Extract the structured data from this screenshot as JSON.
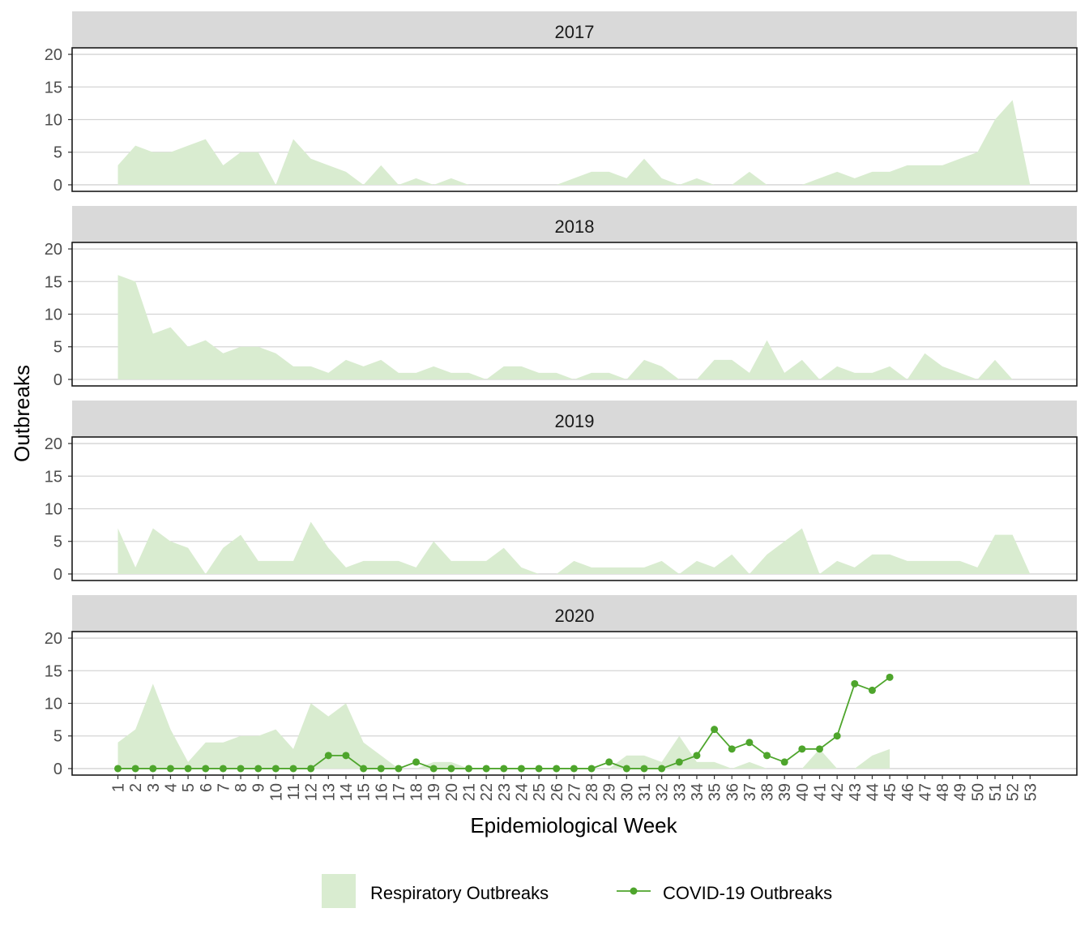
{
  "chart_data": {
    "type": "area",
    "ylabel": "Outbreaks",
    "xlabel": "Epidemiological Week",
    "ylim": [
      0,
      20
    ],
    "y_ticks": [
      "0",
      "5",
      "10",
      "15",
      "20"
    ],
    "x_ticks": [
      "1",
      "2",
      "3",
      "4",
      "5",
      "6",
      "7",
      "8",
      "9",
      "10",
      "11",
      "12",
      "13",
      "14",
      "15",
      "16",
      "17",
      "18",
      "19",
      "20",
      "21",
      "22",
      "23",
      "24",
      "25",
      "26",
      "27",
      "28",
      "29",
      "30",
      "31",
      "32",
      "33",
      "34",
      "35",
      "36",
      "37",
      "38",
      "39",
      "40",
      "41",
      "42",
      "43",
      "44",
      "45",
      "46",
      "47",
      "48",
      "49",
      "50",
      "51",
      "52",
      "53"
    ],
    "grid": true,
    "legend_position": "bottom",
    "colors": {
      "respiratory": "#d9ecd0",
      "covid": "#4ea52c",
      "strip": "#d9d9d9",
      "grid": "#d4d4d4"
    },
    "legend": [
      {
        "key": "respiratory",
        "label": "Respiratory Outbreaks"
      },
      {
        "key": "covid",
        "label": "COVID-19 Outbreaks"
      }
    ],
    "panels": [
      {
        "label": "2017",
        "respiratory": [
          3,
          6,
          5,
          5,
          6,
          7,
          3,
          5,
          5,
          0,
          7,
          4,
          3,
          2,
          0,
          3,
          0,
          1,
          0,
          1,
          0,
          0,
          0,
          0,
          0,
          0,
          1,
          2,
          2,
          1,
          4,
          1,
          0,
          1,
          0,
          0,
          2,
          0,
          0,
          0,
          1,
          2,
          1,
          2,
          2,
          3,
          3,
          3,
          4,
          5,
          10,
          13,
          0
        ],
        "covid": []
      },
      {
        "label": "2018",
        "respiratory": [
          16,
          15,
          7,
          8,
          5,
          6,
          4,
          5,
          5,
          4,
          2,
          2,
          1,
          3,
          2,
          3,
          1,
          1,
          2,
          1,
          1,
          0,
          2,
          2,
          1,
          1,
          0,
          1,
          1,
          0,
          3,
          2,
          0,
          0,
          3,
          3,
          1,
          6,
          1,
          3,
          0,
          2,
          1,
          1,
          2,
          0,
          4,
          2,
          1,
          0,
          3,
          0
        ],
        "covid": []
      },
      {
        "label": "2019",
        "respiratory": [
          7,
          1,
          7,
          5,
          4,
          0,
          4,
          6,
          2,
          2,
          2,
          8,
          4,
          1,
          2,
          2,
          2,
          1,
          5,
          2,
          2,
          2,
          4,
          1,
          0,
          0,
          2,
          1,
          1,
          1,
          1,
          2,
          0,
          2,
          1,
          3,
          0,
          3,
          5,
          7,
          0,
          2,
          1,
          3,
          3,
          2,
          2,
          2,
          2,
          1,
          6,
          6,
          0
        ],
        "covid": []
      },
      {
        "label": "2020",
        "respiratory": [
          4,
          6,
          13,
          6,
          1,
          4,
          4,
          5,
          5,
          6,
          3,
          10,
          8,
          10,
          4,
          2,
          0,
          0,
          1,
          1,
          0,
          0,
          0,
          0,
          0,
          0,
          0,
          0,
          0,
          2,
          2,
          1,
          5,
          1,
          1,
          0,
          1,
          0,
          0,
          0,
          3,
          0,
          0,
          2,
          3
        ],
        "covid": [
          0,
          0,
          0,
          0,
          0,
          0,
          0,
          0,
          0,
          0,
          0,
          0,
          2,
          2,
          0,
          0,
          0,
          1,
          0,
          0,
          0,
          0,
          0,
          0,
          0,
          0,
          0,
          0,
          1,
          0,
          0,
          0,
          1,
          2,
          6,
          3,
          4,
          2,
          1,
          3,
          3,
          5,
          13,
          12,
          14
        ]
      }
    ]
  }
}
